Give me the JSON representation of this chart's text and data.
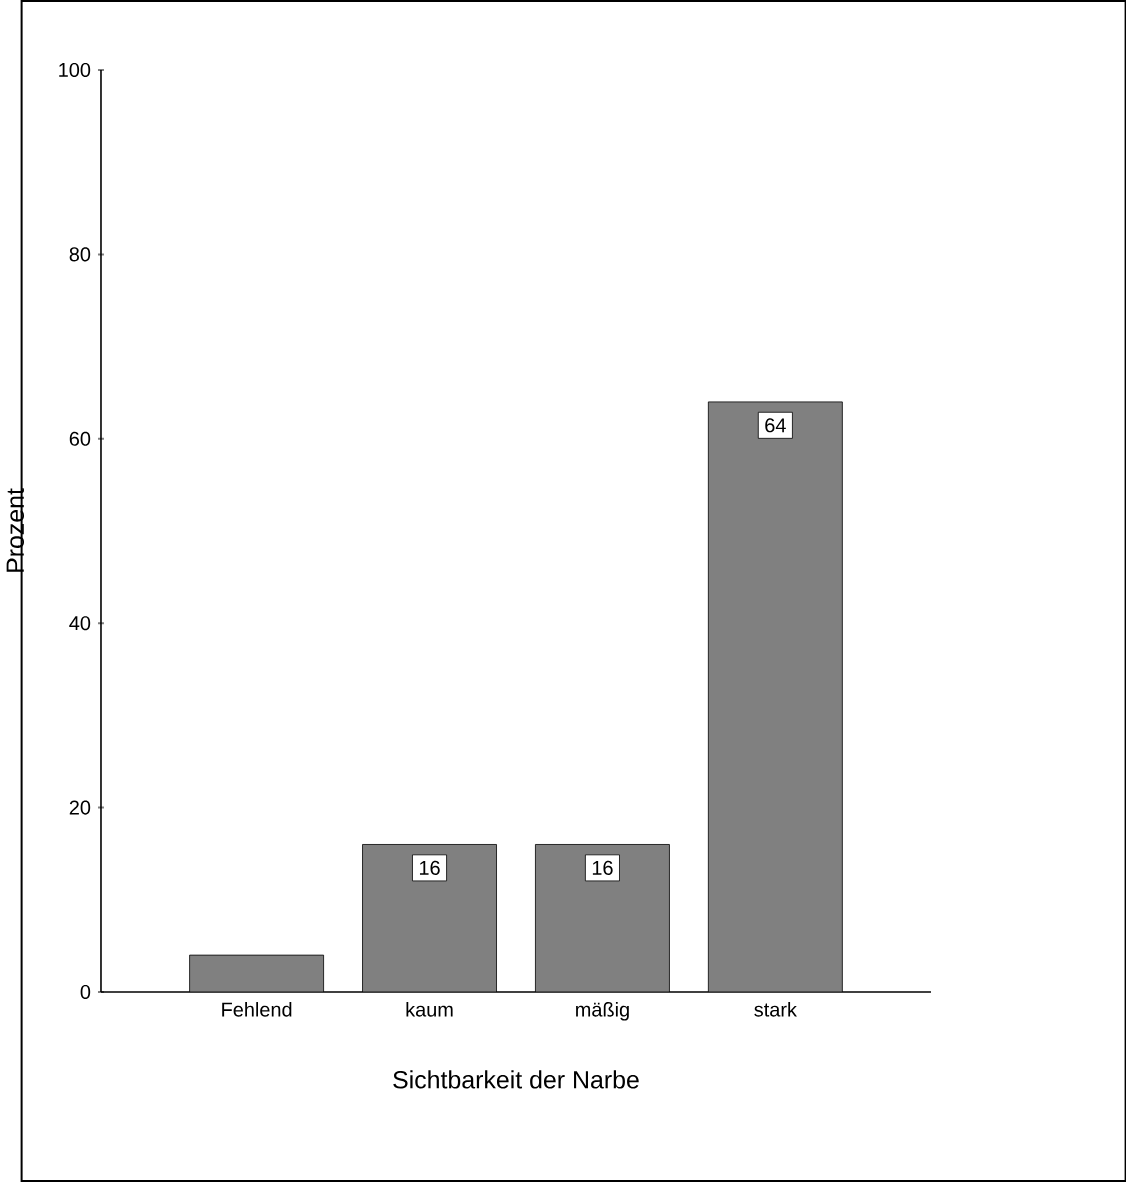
{
  "chart_data": {
    "type": "bar",
    "xlabel": "Sichtbarkeit der Narbe",
    "ylabel": "Prozent",
    "categories": [
      "Fehlend",
      "kaum",
      "mäßig",
      "stark"
    ],
    "values": [
      4,
      16,
      16,
      64
    ],
    "value_labels": [
      null,
      "16",
      "16",
      "64"
    ],
    "color": "#808080",
    "ylim": [
      0,
      100
    ],
    "yticks": [
      0,
      20,
      40,
      60,
      80,
      100
    ]
  }
}
